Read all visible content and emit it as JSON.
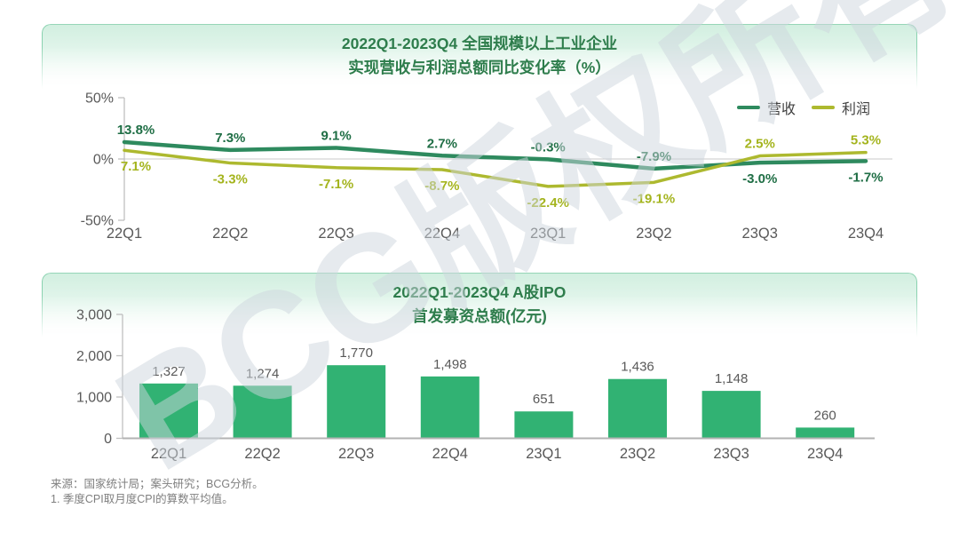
{
  "watermark": {
    "text": "BCG版权所有"
  },
  "footer": {
    "line1": "来源：国家统计局；案头研究；BCG分析。",
    "line2": "1. 季度CPI取月度CPI的算数平均值。"
  },
  "colors": {
    "title_green": "#2E7D4C",
    "revenue_line": "#2E8A5E",
    "revenue_label": "#1F6E45",
    "profit_line": "#ADB92F",
    "profit_label": "#A4B41E",
    "bar_green": "#31B273",
    "axis_text": "#595959",
    "axis_line": "#BFBFBF",
    "zero_line": "#C8C8C8",
    "footnote_text": "#7F7F7F"
  },
  "chart_data": [
    {
      "type": "line",
      "title_line1": "2022Q1-2023Q4 全国规模以上工业企业",
      "title_line2": "实现营收与利润总额同比变化率（%）",
      "categories": [
        "22Q1",
        "22Q2",
        "22Q3",
        "22Q4",
        "23Q1",
        "23Q2",
        "23Q3",
        "23Q4"
      ],
      "series": [
        {
          "name": "营收",
          "color": "#2E8A5E",
          "label_color": "#1F6E45",
          "values": [
            13.8,
            7.3,
            9.1,
            2.7,
            -0.3,
            -7.9,
            -3.0,
            -1.7
          ]
        },
        {
          "name": "利润",
          "color": "#ADB92F",
          "label_color": "#A4B41E",
          "values": [
            7.1,
            -3.3,
            -7.1,
            -8.7,
            -22.4,
            -19.1,
            2.5,
            5.3
          ]
        }
      ],
      "y_ticks": [
        {
          "value": 50,
          "label": "50%"
        },
        {
          "value": 0,
          "label": "0%"
        },
        {
          "value": -50,
          "label": "-50%"
        }
      ],
      "ylim": [
        -50,
        50
      ],
      "legend_position": "top-right",
      "grid": "zero-line-only"
    },
    {
      "type": "bar",
      "title_line1": "2022Q1-2023Q4 A股IPO",
      "title_line2": "首发募资总额(亿元)",
      "categories": [
        "22Q1",
        "22Q2",
        "22Q3",
        "22Q4",
        "23Q1",
        "23Q2",
        "23Q3",
        "23Q4"
      ],
      "values": [
        1327,
        1274,
        1770,
        1498,
        651,
        1436,
        1148,
        260
      ],
      "value_labels": [
        "1,327",
        "1,274",
        "1,770",
        "1,498",
        "651",
        "1,436",
        "1,148",
        "260"
      ],
      "y_ticks": [
        {
          "value": 3000,
          "label": "3,000"
        },
        {
          "value": 2000,
          "label": "2,000"
        },
        {
          "value": 1000,
          "label": "1,000"
        },
        {
          "value": 0,
          "label": "0"
        }
      ],
      "ylim": [
        0,
        3000
      ],
      "grid": "off"
    }
  ]
}
